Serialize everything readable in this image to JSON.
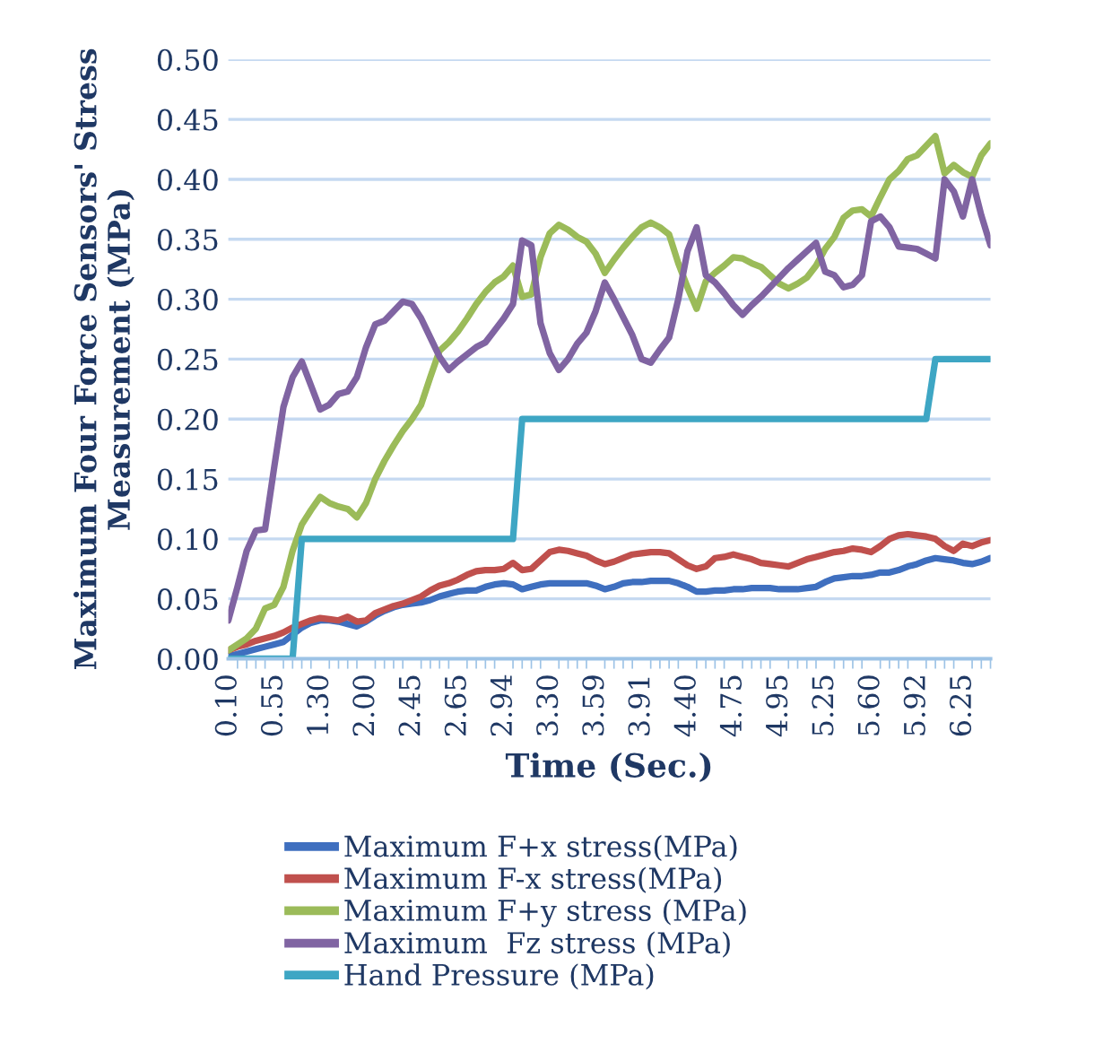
{
  "chart_data": {
    "type": "line",
    "xlabel": "Time (Sec.)",
    "ylabel": "Maximum Four Force Sensors' Stress\nMeasurement (MPa)",
    "categories": [
      "0.10",
      null,
      null,
      null,
      null,
      "0.55",
      null,
      null,
      null,
      null,
      "1.30",
      null,
      null,
      null,
      null,
      "2.00",
      null,
      null,
      null,
      null,
      "2.45",
      null,
      null,
      null,
      null,
      "2.65",
      null,
      null,
      null,
      null,
      "2.94",
      null,
      null,
      null,
      null,
      "3.30",
      null,
      null,
      null,
      null,
      "3.59",
      null,
      null,
      null,
      null,
      "3.91",
      null,
      null,
      null,
      null,
      "4.40",
      null,
      null,
      null,
      null,
      "4.75",
      null,
      null,
      null,
      null,
      "4.95",
      null,
      null,
      null,
      null,
      "5.25",
      null,
      null,
      null,
      null,
      "5.60",
      null,
      null,
      null,
      null,
      "5.92",
      null,
      null,
      null,
      null,
      "6.25",
      null,
      null,
      null
    ],
    "ylim": [
      0,
      0.5
    ],
    "yticks": [
      {
        "value": 0,
        "label": "0.00"
      },
      {
        "value": 0.05,
        "label": "0.05"
      },
      {
        "value": 0.1,
        "label": "0.10"
      },
      {
        "value": 0.15,
        "label": "0.15"
      },
      {
        "value": 0.2,
        "label": "0.20"
      },
      {
        "value": 0.25,
        "label": "0.25"
      },
      {
        "value": 0.3,
        "label": "0.30"
      },
      {
        "value": 0.35,
        "label": "0.35"
      },
      {
        "value": 0.4,
        "label": "0.40"
      },
      {
        "value": 0.45,
        "label": "0.45"
      },
      {
        "value": 0.5,
        "label": "0.50"
      }
    ],
    "grid": "y",
    "legend": "bottom",
    "series": [
      {
        "name": "Maximum F+x stress(MPa)",
        "color": "#3f6fbf",
        "values": [
          0.002,
          0.004,
          0.006,
          0.008,
          0.01,
          0.012,
          0.014,
          0.02,
          0.026,
          0.03,
          0.032,
          0.032,
          0.031,
          0.029,
          0.027,
          0.031,
          0.036,
          0.04,
          0.043,
          0.045,
          0.046,
          0.047,
          0.049,
          0.052,
          0.054,
          0.056,
          0.057,
          0.057,
          0.06,
          0.062,
          0.063,
          0.062,
          0.058,
          0.06,
          0.062,
          0.063,
          0.063,
          0.063,
          0.063,
          0.063,
          0.061,
          0.058,
          0.06,
          0.063,
          0.064,
          0.064,
          0.065,
          0.065,
          0.065,
          0.063,
          0.06,
          0.056,
          0.056,
          0.057,
          0.057,
          0.058,
          0.058,
          0.059,
          0.059,
          0.059,
          0.058,
          0.058,
          0.058,
          0.059,
          0.06,
          0.064,
          0.067,
          0.068,
          0.069,
          0.069,
          0.07,
          0.072,
          0.072,
          0.074,
          0.077,
          0.079,
          0.082,
          0.084,
          0.083,
          0.082,
          0.08,
          0.079,
          0.081,
          0.084
        ]
      },
      {
        "name": "Maximum F-x stress(MPa)",
        "color": "#c0504d",
        "values": [
          0.007,
          0.01,
          0.012,
          0.015,
          0.017,
          0.019,
          0.022,
          0.026,
          0.029,
          0.032,
          0.034,
          0.033,
          0.032,
          0.035,
          0.031,
          0.032,
          0.038,
          0.041,
          0.044,
          0.046,
          0.049,
          0.052,
          0.057,
          0.061,
          0.063,
          0.066,
          0.07,
          0.073,
          0.074,
          0.074,
          0.075,
          0.08,
          0.074,
          0.075,
          0.082,
          0.089,
          0.091,
          0.09,
          0.088,
          0.086,
          0.082,
          0.079,
          0.081,
          0.084,
          0.087,
          0.088,
          0.089,
          0.089,
          0.088,
          0.083,
          0.078,
          0.075,
          0.077,
          0.084,
          0.085,
          0.087,
          0.085,
          0.083,
          0.08,
          0.079,
          0.078,
          0.077,
          0.08,
          0.083,
          0.085,
          0.087,
          0.089,
          0.09,
          0.092,
          0.091,
          0.089,
          0.094,
          0.1,
          0.103,
          0.104,
          0.103,
          0.102,
          0.1,
          0.094,
          0.09,
          0.096,
          0.094,
          0.097,
          0.099
        ]
      },
      {
        "name": "Maximum F+y stress (MPa)",
        "color": "#9bbb59",
        "values": [
          0.007,
          0.012,
          0.017,
          0.025,
          0.042,
          0.045,
          0.06,
          0.09,
          0.112,
          0.124,
          0.135,
          0.13,
          0.127,
          0.125,
          0.118,
          0.13,
          0.15,
          0.165,
          0.178,
          0.19,
          0.2,
          0.212,
          0.235,
          0.257,
          0.264,
          0.273,
          0.284,
          0.296,
          0.306,
          0.314,
          0.319,
          0.328,
          0.302,
          0.304,
          0.335,
          0.355,
          0.362,
          0.358,
          0.352,
          0.348,
          0.338,
          0.322,
          0.333,
          0.343,
          0.352,
          0.36,
          0.364,
          0.36,
          0.354,
          0.33,
          0.31,
          0.292,
          0.315,
          0.322,
          0.328,
          0.335,
          0.334,
          0.33,
          0.327,
          0.32,
          0.313,
          0.309,
          0.313,
          0.318,
          0.328,
          0.342,
          0.352,
          0.368,
          0.374,
          0.375,
          0.369,
          0.385,
          0.4,
          0.407,
          0.417,
          0.42,
          0.428,
          0.436,
          0.405,
          0.412,
          0.406,
          0.402,
          0.42,
          0.43
        ]
      },
      {
        "name": "Maximum  Fz stress (MPa)",
        "color": "#8064a2",
        "values": [
          0.032,
          0.06,
          0.09,
          0.107,
          0.108,
          0.16,
          0.21,
          0.235,
          0.248,
          0.228,
          0.208,
          0.212,
          0.221,
          0.223,
          0.235,
          0.26,
          0.279,
          0.282,
          0.29,
          0.298,
          0.296,
          0.284,
          0.268,
          0.252,
          0.241,
          0.248,
          0.254,
          0.26,
          0.264,
          0.274,
          0.284,
          0.296,
          0.349,
          0.345,
          0.28,
          0.255,
          0.241,
          0.25,
          0.263,
          0.272,
          0.29,
          0.314,
          0.3,
          0.285,
          0.27,
          0.25,
          0.247,
          0.258,
          0.268,
          0.3,
          0.34,
          0.36,
          0.32,
          0.314,
          0.305,
          0.295,
          0.287,
          0.295,
          0.302,
          0.31,
          0.318,
          0.326,
          0.333,
          0.34,
          0.347,
          0.323,
          0.32,
          0.31,
          0.312,
          0.32,
          0.365,
          0.369,
          0.36,
          0.344,
          0.343,
          0.342,
          0.338,
          0.334,
          0.4,
          0.39,
          0.369,
          0.4,
          0.37,
          0.345
        ]
      },
      {
        "name": "Hand Pressure (MPa)",
        "color": "#3ea6c4",
        "values": [
          0,
          0,
          0,
          0,
          0,
          0,
          0,
          0,
          0.1,
          0.1,
          0.1,
          0.1,
          0.1,
          0.1,
          0.1,
          0.1,
          0.1,
          0.1,
          0.1,
          0.1,
          0.1,
          0.1,
          0.1,
          0.1,
          0.1,
          0.1,
          0.1,
          0.1,
          0.1,
          0.1,
          0.1,
          0.1,
          0.2,
          0.2,
          0.2,
          0.2,
          0.2,
          0.2,
          0.2,
          0.2,
          0.2,
          0.2,
          0.2,
          0.2,
          0.2,
          0.2,
          0.2,
          0.2,
          0.2,
          0.2,
          0.2,
          0.2,
          0.2,
          0.2,
          0.2,
          0.2,
          0.2,
          0.2,
          0.2,
          0.2,
          0.2,
          0.2,
          0.2,
          0.2,
          0.2,
          0.2,
          0.2,
          0.2,
          0.2,
          0.2,
          0.2,
          0.2,
          0.2,
          0.2,
          0.2,
          0.2,
          0.2,
          0.25,
          0.25,
          0.25,
          0.25,
          0.25,
          0.25,
          0.25
        ]
      }
    ]
  }
}
